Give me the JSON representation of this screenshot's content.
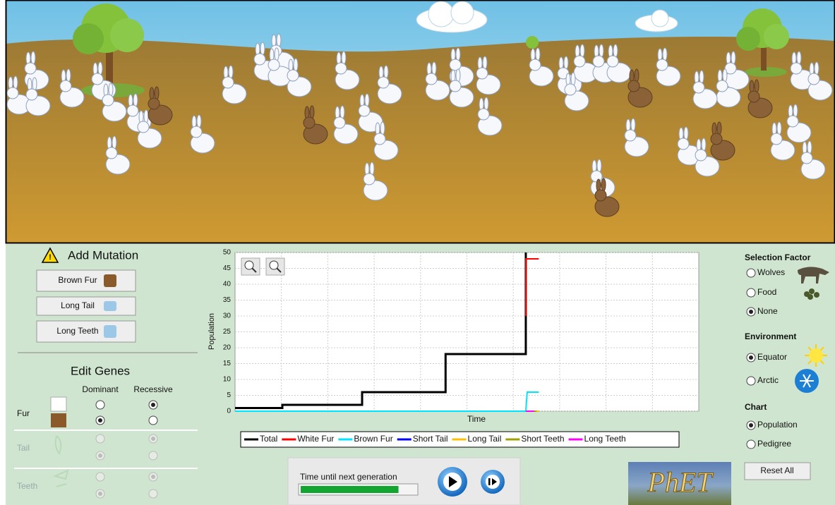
{
  "add_mutation": {
    "title": "Add Mutation",
    "buttons": [
      "Brown Fur",
      "Long Tail",
      "Long Teeth"
    ]
  },
  "edit_genes": {
    "title": "Edit Genes",
    "columns": [
      "Dominant",
      "Recessive"
    ],
    "rows": [
      {
        "label": "Fur",
        "enabled": true,
        "dominant": 1
      },
      {
        "label": "Tail",
        "enabled": false,
        "dominant": 1
      },
      {
        "label": "Teeth",
        "enabled": false,
        "dominant": 1
      }
    ]
  },
  "chart": {
    "type": "line",
    "x_label": "Time",
    "y_label": "Population",
    "xlim": [
      0,
      10
    ],
    "ylim": [
      0,
      50
    ],
    "yticks": [
      0,
      5,
      10,
      15,
      20,
      25,
      30,
      35,
      40,
      45,
      50
    ],
    "grid": true,
    "series": [
      {
        "name": "Total",
        "color": "#000000",
        "x": [
          0,
          1.02,
          1.02,
          2.74,
          2.74,
          4.54,
          4.54,
          6.27,
          6.27
        ],
        "values": [
          1,
          1,
          2,
          2,
          6,
          6,
          18,
          18,
          50
        ]
      },
      {
        "name": "White Fur",
        "color": "#ff0000",
        "x": [
          6.27,
          6.27,
          6.55
        ],
        "values": [
          30,
          48,
          48
        ]
      },
      {
        "name": "Brown Fur",
        "color": "#00e5ff",
        "x": [
          0,
          6.27,
          6.3,
          6.55
        ],
        "values": [
          0,
          0,
          6,
          6
        ]
      },
      {
        "name": "Short Tail",
        "color": "#0000ff",
        "x": [
          6.27,
          6.5
        ],
        "values": [
          0,
          0
        ]
      },
      {
        "name": "Long Tail",
        "color": "#ffc000",
        "x": [
          6.3,
          6.55
        ],
        "values": [
          0,
          0
        ]
      },
      {
        "name": "Short Teeth",
        "color": "#a0a000",
        "x": [
          6.27,
          6.5
        ],
        "values": [
          0,
          0
        ]
      },
      {
        "name": "Long Teeth",
        "color": "#ff00ff",
        "x": [
          6.27,
          6.45
        ],
        "values": [
          0,
          0
        ]
      }
    ]
  },
  "selection_factor": {
    "title": "Selection Factor",
    "options": [
      "Wolves",
      "Food",
      "None"
    ],
    "selected": 2
  },
  "environment": {
    "title": "Environment",
    "options": [
      "Equator",
      "Arctic"
    ],
    "selected": 0
  },
  "chart_mode": {
    "title": "Chart",
    "options": [
      "Population",
      "Pedigree"
    ],
    "selected": 0
  },
  "reset_button": "Reset All",
  "generation": {
    "label": "Time until next generation",
    "progress": 85
  },
  "logo": "PhET"
}
